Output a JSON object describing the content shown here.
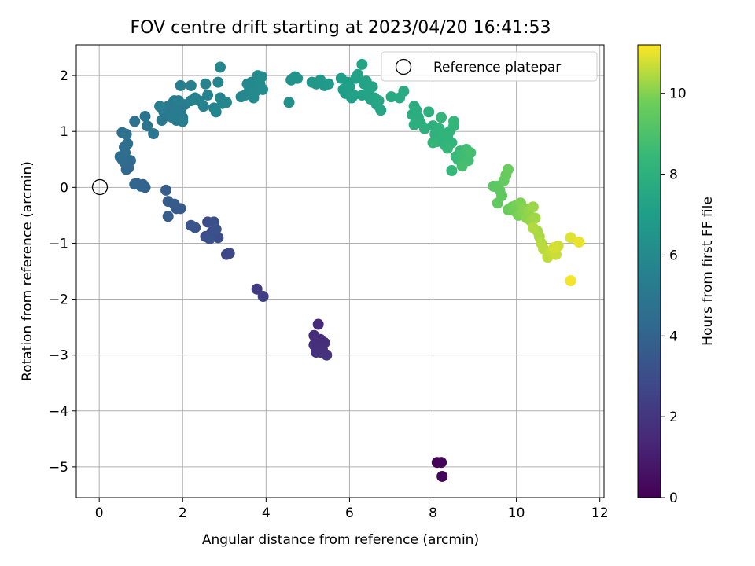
{
  "chart_data": {
    "type": "scatter",
    "title": "FOV centre drift starting at 2023/04/20 16:41:53",
    "xlabel": "Angular distance from reference (arcmin)",
    "ylabel": "Rotation from reference (arcmin)",
    "xlim": [
      -0.55,
      12.1
    ],
    "ylim": [
      -5.55,
      2.55
    ],
    "xticks": [
      0,
      2,
      4,
      6,
      8,
      10,
      12
    ],
    "yticks": [
      -5,
      -4,
      -3,
      -2,
      -1,
      0,
      1,
      2
    ],
    "grid": true,
    "legend": {
      "position": "top-right",
      "entries": [
        "Reference platepar"
      ]
    },
    "reference_point": {
      "x": 0,
      "y": 0,
      "label": "Reference platepar"
    },
    "colorbar": {
      "label": "Hours from first FF file",
      "min": 0,
      "max": 11.2,
      "ticks": [
        0,
        2,
        4,
        6,
        8,
        10
      ],
      "colormap": "viridis"
    },
    "points": [
      {
        "x": 8.1,
        "y": -4.92,
        "c": 0.05
      },
      {
        "x": 8.2,
        "y": -4.92,
        "c": 0.1
      },
      {
        "x": 8.22,
        "y": -5.17,
        "c": 0.15
      },
      {
        "x": 5.25,
        "y": -2.45,
        "c": 1.5
      },
      {
        "x": 5.15,
        "y": -2.65,
        "c": 1.55
      },
      {
        "x": 5.2,
        "y": -2.7,
        "c": 1.6
      },
      {
        "x": 5.3,
        "y": -2.72,
        "c": 1.6
      },
      {
        "x": 5.4,
        "y": -2.78,
        "c": 1.65
      },
      {
        "x": 5.15,
        "y": -2.82,
        "c": 1.7
      },
      {
        "x": 5.25,
        "y": -2.85,
        "c": 1.7
      },
      {
        "x": 5.35,
        "y": -2.9,
        "c": 1.75
      },
      {
        "x": 5.2,
        "y": -2.95,
        "c": 1.8
      },
      {
        "x": 5.3,
        "y": -2.95,
        "c": 1.8
      },
      {
        "x": 5.45,
        "y": -3.0,
        "c": 1.85
      },
      {
        "x": 3.78,
        "y": -1.82,
        "c": 2.3
      },
      {
        "x": 3.93,
        "y": -1.95,
        "c": 2.35
      },
      {
        "x": 3.05,
        "y": -1.2,
        "c": 2.7
      },
      {
        "x": 3.12,
        "y": -1.18,
        "c": 2.75
      },
      {
        "x": 2.7,
        "y": -0.8,
        "c": 2.9
      },
      {
        "x": 2.85,
        "y": -0.9,
        "c": 2.95
      },
      {
        "x": 2.6,
        "y": -0.62,
        "c": 3.0
      },
      {
        "x": 2.7,
        "y": -0.85,
        "c": 3.0
      },
      {
        "x": 2.55,
        "y": -0.88,
        "c": 3.05
      },
      {
        "x": 2.75,
        "y": -0.62,
        "c": 3.1
      },
      {
        "x": 2.8,
        "y": -0.75,
        "c": 3.15
      },
      {
        "x": 2.65,
        "y": -0.92,
        "c": 3.2
      },
      {
        "x": 2.3,
        "y": -0.72,
        "c": 3.3
      },
      {
        "x": 2.2,
        "y": -0.68,
        "c": 3.35
      },
      {
        "x": 1.85,
        "y": -0.38,
        "c": 3.5
      },
      {
        "x": 1.95,
        "y": -0.38,
        "c": 3.55
      },
      {
        "x": 1.8,
        "y": -0.3,
        "c": 3.6
      },
      {
        "x": 1.65,
        "y": -0.25,
        "c": 3.65
      },
      {
        "x": 1.6,
        "y": -0.05,
        "c": 3.7
      },
      {
        "x": 1.65,
        "y": -0.52,
        "c": 3.75
      },
      {
        "x": 1.05,
        "y": 0.05,
        "c": 3.9
      },
      {
        "x": 1.1,
        "y": 0.0,
        "c": 3.95
      },
      {
        "x": 0.9,
        "y": 0.07,
        "c": 4.0
      },
      {
        "x": 1.0,
        "y": 0.02,
        "c": 4.05
      },
      {
        "x": 0.85,
        "y": 0.06,
        "c": 4.1
      },
      {
        "x": 0.65,
        "y": 0.32,
        "c": 4.2
      },
      {
        "x": 0.7,
        "y": 0.35,
        "c": 4.25
      },
      {
        "x": 0.6,
        "y": 0.45,
        "c": 4.3
      },
      {
        "x": 0.75,
        "y": 0.48,
        "c": 4.35
      },
      {
        "x": 0.55,
        "y": 0.5,
        "c": 4.4
      },
      {
        "x": 0.5,
        "y": 0.55,
        "c": 4.45
      },
      {
        "x": 0.62,
        "y": 0.62,
        "c": 4.5
      },
      {
        "x": 0.68,
        "y": 0.78,
        "c": 4.55
      },
      {
        "x": 0.6,
        "y": 0.72,
        "c": 4.6
      },
      {
        "x": 0.55,
        "y": 0.98,
        "c": 4.65
      },
      {
        "x": 0.65,
        "y": 0.95,
        "c": 4.7
      },
      {
        "x": 0.85,
        "y": 1.18,
        "c": 4.75
      },
      {
        "x": 1.1,
        "y": 1.27,
        "c": 4.8
      },
      {
        "x": 1.15,
        "y": 1.1,
        "c": 4.85
      },
      {
        "x": 1.3,
        "y": 0.96,
        "c": 4.9
      },
      {
        "x": 1.5,
        "y": 1.2,
        "c": 5.0
      },
      {
        "x": 1.55,
        "y": 1.35,
        "c": 5.0
      },
      {
        "x": 1.6,
        "y": 1.28,
        "c": 5.05
      },
      {
        "x": 1.65,
        "y": 1.45,
        "c": 5.05
      },
      {
        "x": 1.7,
        "y": 1.4,
        "c": 5.1
      },
      {
        "x": 1.75,
        "y": 1.5,
        "c": 5.1
      },
      {
        "x": 1.8,
        "y": 1.55,
        "c": 5.15
      },
      {
        "x": 1.85,
        "y": 1.32,
        "c": 5.15
      },
      {
        "x": 1.9,
        "y": 1.45,
        "c": 5.2
      },
      {
        "x": 1.95,
        "y": 1.38,
        "c": 5.2
      },
      {
        "x": 2.0,
        "y": 1.25,
        "c": 5.25
      },
      {
        "x": 2.05,
        "y": 1.48,
        "c": 5.25
      },
      {
        "x": 1.85,
        "y": 1.2,
        "c": 5.3
      },
      {
        "x": 1.75,
        "y": 1.25,
        "c": 5.3
      },
      {
        "x": 1.9,
        "y": 1.55,
        "c": 5.35
      },
      {
        "x": 2.0,
        "y": 1.18,
        "c": 5.35
      },
      {
        "x": 1.5,
        "y": 1.42,
        "c": 5.4
      },
      {
        "x": 1.45,
        "y": 1.45,
        "c": 5.4
      },
      {
        "x": 1.95,
        "y": 1.82,
        "c": 5.45
      },
      {
        "x": 2.2,
        "y": 1.82,
        "c": 5.5
      },
      {
        "x": 2.3,
        "y": 1.6,
        "c": 5.5
      },
      {
        "x": 2.2,
        "y": 1.55,
        "c": 5.55
      },
      {
        "x": 2.4,
        "y": 1.55,
        "c": 5.55
      },
      {
        "x": 2.5,
        "y": 1.45,
        "c": 5.6
      },
      {
        "x": 2.6,
        "y": 1.65,
        "c": 5.6
      },
      {
        "x": 2.55,
        "y": 1.85,
        "c": 5.65
      },
      {
        "x": 2.75,
        "y": 1.42,
        "c": 5.65
      },
      {
        "x": 2.8,
        "y": 1.35,
        "c": 5.7
      },
      {
        "x": 2.85,
        "y": 1.88,
        "c": 5.7
      },
      {
        "x": 2.9,
        "y": 1.6,
        "c": 5.75
      },
      {
        "x": 2.95,
        "y": 1.5,
        "c": 5.75
      },
      {
        "x": 3.05,
        "y": 1.52,
        "c": 5.8
      },
      {
        "x": 2.9,
        "y": 2.15,
        "c": 5.8
      },
      {
        "x": 3.4,
        "y": 1.62,
        "c": 5.85
      },
      {
        "x": 3.5,
        "y": 1.65,
        "c": 5.9
      },
      {
        "x": 3.55,
        "y": 1.85,
        "c": 5.9
      },
      {
        "x": 3.6,
        "y": 1.75,
        "c": 5.95
      },
      {
        "x": 3.65,
        "y": 1.88,
        "c": 5.95
      },
      {
        "x": 3.7,
        "y": 1.6,
        "c": 6.0
      },
      {
        "x": 3.75,
        "y": 1.72,
        "c": 6.0
      },
      {
        "x": 3.8,
        "y": 2.0,
        "c": 6.05
      },
      {
        "x": 3.85,
        "y": 1.85,
        "c": 6.05
      },
      {
        "x": 3.9,
        "y": 1.98,
        "c": 6.1
      },
      {
        "x": 3.92,
        "y": 1.75,
        "c": 6.1
      },
      {
        "x": 4.55,
        "y": 1.52,
        "c": 6.3
      },
      {
        "x": 4.6,
        "y": 1.92,
        "c": 6.35
      },
      {
        "x": 4.65,
        "y": 1.95,
        "c": 6.4
      },
      {
        "x": 4.7,
        "y": 1.98,
        "c": 6.45
      },
      {
        "x": 4.75,
        "y": 1.95,
        "c": 6.45
      },
      {
        "x": 5.1,
        "y": 1.88,
        "c": 6.6
      },
      {
        "x": 5.2,
        "y": 1.85,
        "c": 6.65
      },
      {
        "x": 5.3,
        "y": 1.92,
        "c": 6.7
      },
      {
        "x": 5.4,
        "y": 1.82,
        "c": 6.75
      },
      {
        "x": 5.5,
        "y": 1.85,
        "c": 6.8
      },
      {
        "x": 5.8,
        "y": 1.95,
        "c": 7.0
      },
      {
        "x": 5.85,
        "y": 1.75,
        "c": 7.0
      },
      {
        "x": 5.9,
        "y": 1.68,
        "c": 7.05
      },
      {
        "x": 5.95,
        "y": 1.88,
        "c": 7.05
      },
      {
        "x": 6.0,
        "y": 1.8,
        "c": 7.1
      },
      {
        "x": 6.05,
        "y": 1.6,
        "c": 7.1
      },
      {
        "x": 6.1,
        "y": 1.65,
        "c": 7.15
      },
      {
        "x": 6.15,
        "y": 1.95,
        "c": 7.15
      },
      {
        "x": 6.2,
        "y": 2.02,
        "c": 7.2
      },
      {
        "x": 6.3,
        "y": 1.65,
        "c": 7.2
      },
      {
        "x": 6.35,
        "y": 1.85,
        "c": 7.25
      },
      {
        "x": 6.4,
        "y": 1.9,
        "c": 7.25
      },
      {
        "x": 6.45,
        "y": 1.7,
        "c": 7.3
      },
      {
        "x": 6.5,
        "y": 1.58,
        "c": 7.3
      },
      {
        "x": 6.3,
        "y": 2.2,
        "c": 7.35
      },
      {
        "x": 6.55,
        "y": 1.8,
        "c": 7.35
      },
      {
        "x": 6.6,
        "y": 1.6,
        "c": 7.4
      },
      {
        "x": 6.65,
        "y": 1.48,
        "c": 7.4
      },
      {
        "x": 6.7,
        "y": 1.55,
        "c": 7.45
      },
      {
        "x": 6.75,
        "y": 1.38,
        "c": 7.45
      },
      {
        "x": 7.0,
        "y": 1.62,
        "c": 7.6
      },
      {
        "x": 7.2,
        "y": 1.6,
        "c": 7.65
      },
      {
        "x": 7.3,
        "y": 1.72,
        "c": 7.7
      },
      {
        "x": 7.5,
        "y": 1.3,
        "c": 7.8
      },
      {
        "x": 7.55,
        "y": 1.45,
        "c": 7.8
      },
      {
        "x": 7.6,
        "y": 1.38,
        "c": 7.85
      },
      {
        "x": 7.65,
        "y": 1.25,
        "c": 7.85
      },
      {
        "x": 7.55,
        "y": 1.12,
        "c": 7.9
      },
      {
        "x": 7.7,
        "y": 1.15,
        "c": 7.9
      },
      {
        "x": 7.8,
        "y": 1.05,
        "c": 7.95
      },
      {
        "x": 7.9,
        "y": 1.35,
        "c": 7.95
      },
      {
        "x": 8.0,
        "y": 1.1,
        "c": 8.0
      },
      {
        "x": 8.05,
        "y": 0.95,
        "c": 8.05
      },
      {
        "x": 8.1,
        "y": 0.82,
        "c": 8.05
      },
      {
        "x": 8.15,
        "y": 1.05,
        "c": 8.1
      },
      {
        "x": 8.2,
        "y": 0.85,
        "c": 8.1
      },
      {
        "x": 8.25,
        "y": 0.95,
        "c": 8.15
      },
      {
        "x": 8.3,
        "y": 0.75,
        "c": 8.15
      },
      {
        "x": 8.35,
        "y": 0.9,
        "c": 8.2
      },
      {
        "x": 8.4,
        "y": 1.0,
        "c": 8.2
      },
      {
        "x": 8.45,
        "y": 0.8,
        "c": 8.25
      },
      {
        "x": 8.5,
        "y": 1.1,
        "c": 8.25
      },
      {
        "x": 8.0,
        "y": 0.8,
        "c": 8.3
      },
      {
        "x": 8.2,
        "y": 1.25,
        "c": 8.3
      },
      {
        "x": 8.35,
        "y": 0.7,
        "c": 8.35
      },
      {
        "x": 8.5,
        "y": 1.18,
        "c": 8.35
      },
      {
        "x": 8.45,
        "y": 0.3,
        "c": 8.4
      },
      {
        "x": 8.55,
        "y": 0.55,
        "c": 8.45
      },
      {
        "x": 8.6,
        "y": 0.5,
        "c": 8.5
      },
      {
        "x": 8.65,
        "y": 0.65,
        "c": 8.55
      },
      {
        "x": 8.7,
        "y": 0.45,
        "c": 8.6
      },
      {
        "x": 8.75,
        "y": 0.55,
        "c": 8.65
      },
      {
        "x": 8.8,
        "y": 0.68,
        "c": 8.7
      },
      {
        "x": 8.85,
        "y": 0.48,
        "c": 8.75
      },
      {
        "x": 8.9,
        "y": 0.62,
        "c": 8.8
      },
      {
        "x": 8.7,
        "y": 0.38,
        "c": 8.85
      },
      {
        "x": 9.45,
        "y": 0.02,
        "c": 9.3
      },
      {
        "x": 9.55,
        "y": 0.02,
        "c": 9.35
      },
      {
        "x": 9.6,
        "y": -0.05,
        "c": 9.4
      },
      {
        "x": 9.65,
        "y": -0.15,
        "c": 9.45
      },
      {
        "x": 9.55,
        "y": -0.28,
        "c": 9.5
      },
      {
        "x": 9.7,
        "y": 0.12,
        "c": 9.55
      },
      {
        "x": 9.75,
        "y": 0.22,
        "c": 9.6
      },
      {
        "x": 9.8,
        "y": 0.32,
        "c": 9.65
      },
      {
        "x": 9.8,
        "y": -0.4,
        "c": 9.7
      },
      {
        "x": 9.9,
        "y": -0.35,
        "c": 9.75
      },
      {
        "x": 9.95,
        "y": -0.42,
        "c": 9.8
      },
      {
        "x": 10.0,
        "y": -0.32,
        "c": 9.85
      },
      {
        "x": 10.05,
        "y": -0.5,
        "c": 9.9
      },
      {
        "x": 10.1,
        "y": -0.28,
        "c": 9.95
      },
      {
        "x": 10.15,
        "y": -0.45,
        "c": 10.0
      },
      {
        "x": 10.2,
        "y": -0.38,
        "c": 10.05
      },
      {
        "x": 10.25,
        "y": -0.55,
        "c": 10.1
      },
      {
        "x": 10.3,
        "y": -0.42,
        "c": 10.15
      },
      {
        "x": 10.35,
        "y": -0.6,
        "c": 10.2
      },
      {
        "x": 10.4,
        "y": -0.35,
        "c": 10.25
      },
      {
        "x": 10.45,
        "y": -0.55,
        "c": 10.3
      },
      {
        "x": 10.5,
        "y": -0.78,
        "c": 10.35
      },
      {
        "x": 10.55,
        "y": -0.88,
        "c": 10.4
      },
      {
        "x": 10.4,
        "y": -0.72,
        "c": 10.45
      },
      {
        "x": 10.6,
        "y": -1.0,
        "c": 10.5
      },
      {
        "x": 10.65,
        "y": -1.1,
        "c": 10.55
      },
      {
        "x": 10.75,
        "y": -1.25,
        "c": 10.6
      },
      {
        "x": 10.85,
        "y": -1.15,
        "c": 10.65
      },
      {
        "x": 10.95,
        "y": -1.2,
        "c": 10.7
      },
      {
        "x": 11.0,
        "y": -1.05,
        "c": 10.75
      },
      {
        "x": 10.9,
        "y": -1.08,
        "c": 10.8
      },
      {
        "x": 11.3,
        "y": -0.9,
        "c": 10.9
      },
      {
        "x": 11.5,
        "y": -0.98,
        "c": 11.0
      },
      {
        "x": 11.3,
        "y": -1.67,
        "c": 11.1
      }
    ]
  }
}
